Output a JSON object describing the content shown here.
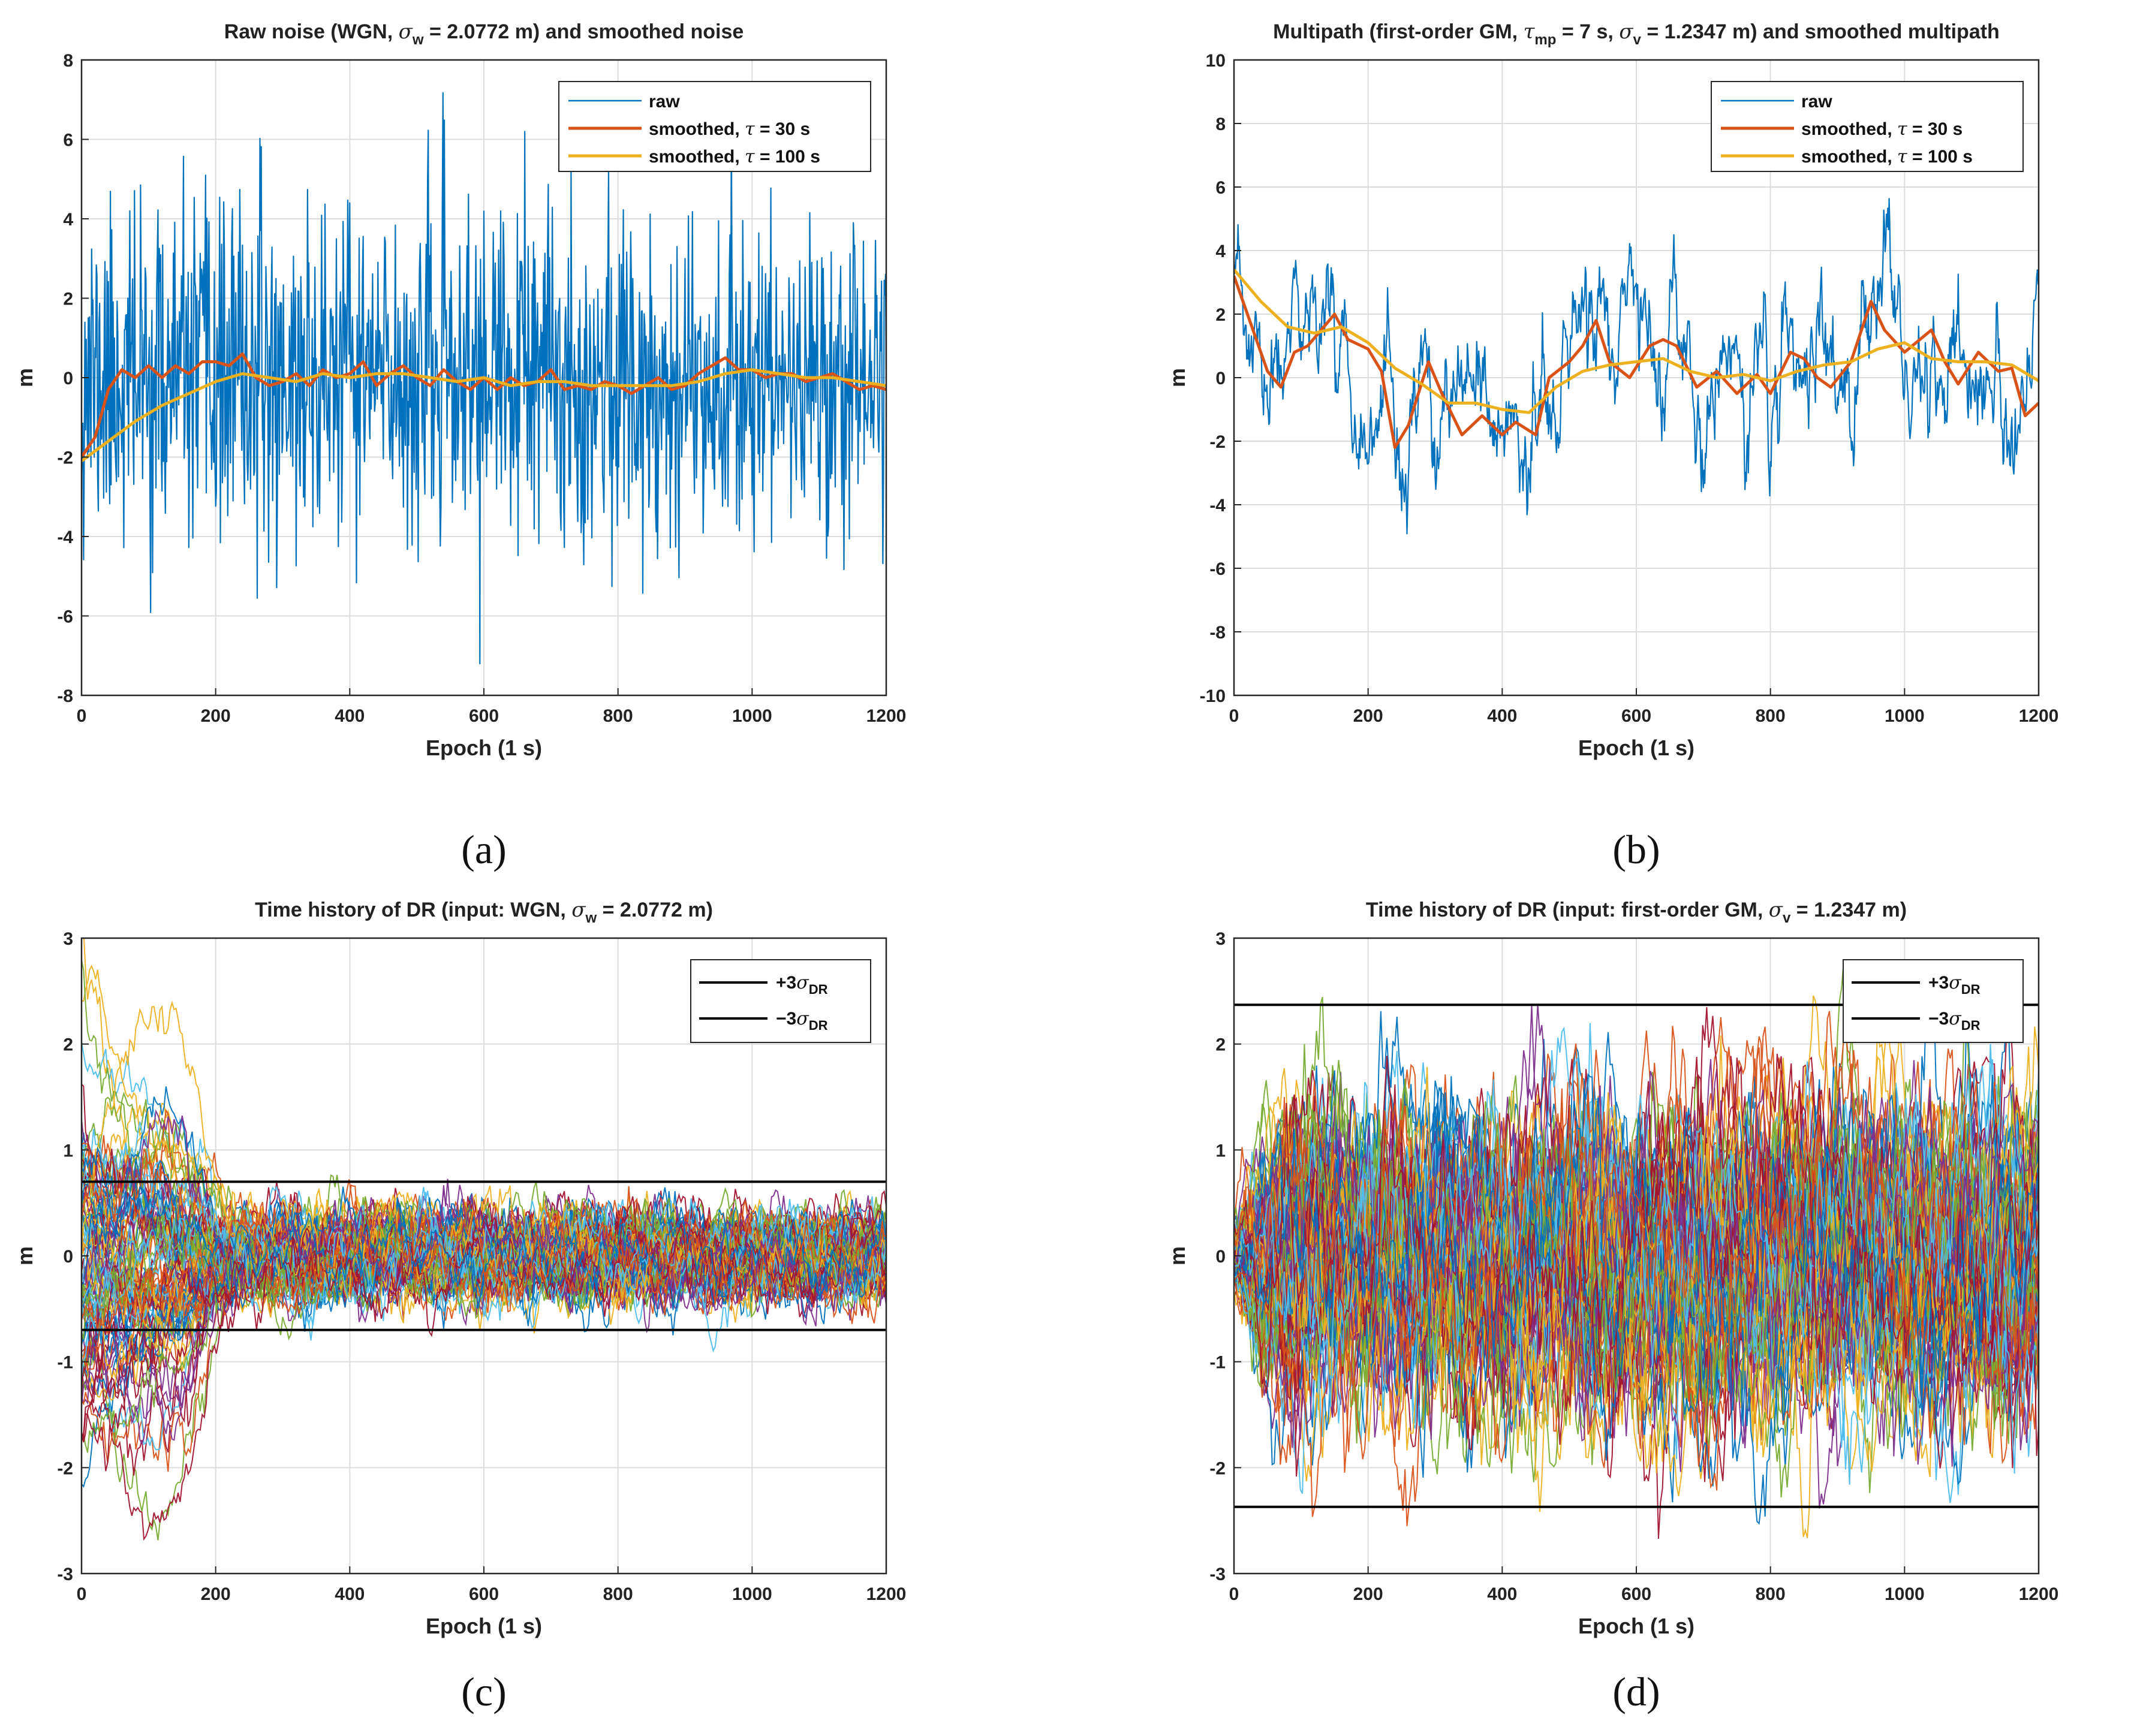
{
  "chart_data": [
    {
      "id": "a",
      "type": "line",
      "panel_label": "(a)",
      "title": "Raw noise (WGN, σ_w = 2.0772 m) and smoothed noise",
      "title_parts": {
        "pre": "Raw noise (WGN, ",
        "sym": "σ",
        "sub": "w",
        "post": " = 2.0772 m) and smoothed noise"
      },
      "xlabel": "Epoch (1 s)",
      "ylabel": "m",
      "xlim": [
        0,
        1200
      ],
      "ylim": [
        -8,
        8
      ],
      "xticks": [
        0,
        200,
        400,
        600,
        800,
        1000,
        1200
      ],
      "yticks": [
        -8,
        -6,
        -4,
        -2,
        0,
        2,
        4,
        6,
        8
      ],
      "grid": true,
      "legend_position": "top-right",
      "series": [
        {
          "name": "raw",
          "legend_label": "raw",
          "color": "#0072BD",
          "kind": "white-noise",
          "sigma": 2.0772,
          "seed": 11
        },
        {
          "name": "smoothed, τ = 30 s",
          "legend_label": "smoothed, τ = 30 s",
          "color": "#D95319",
          "kind": "smoothed",
          "points": [
            [
              0,
              -2.0
            ],
            [
              20,
              -1.5
            ],
            [
              40,
              -0.3
            ],
            [
              60,
              0.2
            ],
            [
              80,
              0.0
            ],
            [
              100,
              0.3
            ],
            [
              120,
              0.0
            ],
            [
              140,
              0.3
            ],
            [
              160,
              0.1
            ],
            [
              180,
              0.4
            ],
            [
              200,
              0.4
            ],
            [
              220,
              0.3
            ],
            [
              240,
              0.6
            ],
            [
              260,
              0.0
            ],
            [
              280,
              -0.2
            ],
            [
              300,
              -0.1
            ],
            [
              320,
              0.1
            ],
            [
              340,
              -0.2
            ],
            [
              360,
              0.2
            ],
            [
              380,
              0.0
            ],
            [
              400,
              0.1
            ],
            [
              420,
              0.4
            ],
            [
              440,
              -0.2
            ],
            [
              460,
              0.1
            ],
            [
              480,
              0.3
            ],
            [
              500,
              0.0
            ],
            [
              520,
              -0.2
            ],
            [
              540,
              0.2
            ],
            [
              560,
              -0.1
            ],
            [
              580,
              -0.3
            ],
            [
              600,
              0.0
            ],
            [
              620,
              -0.3
            ],
            [
              640,
              0.0
            ],
            [
              660,
              -0.2
            ],
            [
              680,
              -0.1
            ],
            [
              700,
              0.2
            ],
            [
              720,
              -0.3
            ],
            [
              740,
              -0.2
            ],
            [
              760,
              -0.3
            ],
            [
              780,
              -0.1
            ],
            [
              800,
              -0.2
            ],
            [
              820,
              -0.4
            ],
            [
              840,
              -0.2
            ],
            [
              860,
              0.0
            ],
            [
              880,
              -0.3
            ],
            [
              900,
              -0.2
            ],
            [
              920,
              0.1
            ],
            [
              940,
              0.3
            ],
            [
              960,
              0.5
            ],
            [
              980,
              0.2
            ],
            [
              1000,
              0.2
            ],
            [
              1020,
              0.0
            ],
            [
              1040,
              0.1
            ],
            [
              1060,
              0.1
            ],
            [
              1080,
              -0.1
            ],
            [
              1100,
              0.0
            ],
            [
              1120,
              0.1
            ],
            [
              1140,
              -0.1
            ],
            [
              1160,
              -0.3
            ],
            [
              1180,
              -0.2
            ],
            [
              1200,
              -0.3
            ]
          ]
        },
        {
          "name": "smoothed, τ = 100 s",
          "legend_label": "smoothed, τ = 100 s",
          "color": "#EDB120",
          "kind": "smoothed",
          "points": [
            [
              0,
              -2.1
            ],
            [
              40,
              -1.6
            ],
            [
              80,
              -1.1
            ],
            [
              120,
              -0.7
            ],
            [
              160,
              -0.4
            ],
            [
              200,
              -0.1
            ],
            [
              240,
              0.1
            ],
            [
              280,
              0.0
            ],
            [
              320,
              -0.1
            ],
            [
              360,
              0.1
            ],
            [
              400,
              0.0
            ],
            [
              440,
              0.1
            ],
            [
              480,
              0.1
            ],
            [
              520,
              0.0
            ],
            [
              560,
              -0.1
            ],
            [
              600,
              0.0
            ],
            [
              640,
              -0.2
            ],
            [
              680,
              -0.1
            ],
            [
              720,
              -0.1
            ],
            [
              760,
              -0.2
            ],
            [
              800,
              -0.2
            ],
            [
              840,
              -0.2
            ],
            [
              880,
              -0.2
            ],
            [
              920,
              -0.1
            ],
            [
              960,
              0.1
            ],
            [
              1000,
              0.2
            ],
            [
              1040,
              0.1
            ],
            [
              1080,
              0.0
            ],
            [
              1120,
              0.0
            ],
            [
              1160,
              -0.1
            ],
            [
              1200,
              -0.2
            ]
          ]
        }
      ]
    },
    {
      "id": "b",
      "type": "line",
      "panel_label": "(b)",
      "title": "Multipath (first-order GM, τ_mp = 7 s, σ_v = 1.2347 m) and smoothed multipath",
      "title_parts": {
        "pre": "Multipath (first-order GM, ",
        "sym": "τ",
        "sub": "mp",
        "mid": " = 7 s, ",
        "sym2": "σ",
        "sub2": "v",
        "post": " = 1.2347 m) and smoothed multipath"
      },
      "xlabel": "Epoch (1 s)",
      "ylabel": "m",
      "xlim": [
        0,
        1200
      ],
      "ylim": [
        -10,
        10
      ],
      "xticks": [
        0,
        200,
        400,
        600,
        800,
        1000,
        1200
      ],
      "yticks": [
        -10,
        -8,
        -6,
        -4,
        -2,
        0,
        2,
        4,
        6,
        8,
        10
      ],
      "grid": true,
      "legend_position": "top-right",
      "series": [
        {
          "name": "raw",
          "legend_label": "raw",
          "color": "#0072BD",
          "kind": "gauss-markov",
          "tau": 7,
          "sigma": 1.2347,
          "seed": 23,
          "trend": [
            [
              0,
              2.5
            ],
            [
              50,
              -1.0
            ],
            [
              100,
              1.5
            ],
            [
              130,
              3.0
            ],
            [
              180,
              0.5
            ],
            [
              240,
              -3.0
            ],
            [
              300,
              -1.0
            ],
            [
              350,
              -2.0
            ],
            [
              420,
              -1.5
            ],
            [
              480,
              -1.0
            ],
            [
              520,
              1.5
            ],
            [
              560,
              2.0
            ],
            [
              640,
              0.5
            ],
            [
              700,
              -1.5
            ],
            [
              760,
              0.0
            ],
            [
              820,
              -0.5
            ],
            [
              860,
              1.5
            ],
            [
              900,
              -1.0
            ],
            [
              960,
              2.5
            ],
            [
              1000,
              0.5
            ],
            [
              1050,
              1.0
            ],
            [
              1100,
              0.0
            ],
            [
              1160,
              -1.0
            ],
            [
              1200,
              0.5
            ]
          ]
        },
        {
          "name": "smoothed, τ = 30 s",
          "legend_label": "smoothed, τ = 30 s",
          "color": "#D95319",
          "kind": "smoothed",
          "points": [
            [
              0,
              3.2
            ],
            [
              20,
              2.0
            ],
            [
              50,
              0.2
            ],
            [
              70,
              -0.3
            ],
            [
              90,
              0.8
            ],
            [
              110,
              1.0
            ],
            [
              130,
              1.5
            ],
            [
              150,
              2.0
            ],
            [
              170,
              1.2
            ],
            [
              200,
              0.9
            ],
            [
              220,
              0.2
            ],
            [
              240,
              -2.2
            ],
            [
              260,
              -1.5
            ],
            [
              290,
              0.5
            ],
            [
              310,
              -0.5
            ],
            [
              340,
              -1.8
            ],
            [
              370,
              -1.2
            ],
            [
              400,
              -1.8
            ],
            [
              420,
              -1.4
            ],
            [
              450,
              -1.8
            ],
            [
              470,
              0.0
            ],
            [
              500,
              0.5
            ],
            [
              520,
              1.0
            ],
            [
              540,
              1.8
            ],
            [
              560,
              0.5
            ],
            [
              590,
              0.0
            ],
            [
              620,
              1.0
            ],
            [
              640,
              1.2
            ],
            [
              660,
              1.0
            ],
            [
              690,
              -0.3
            ],
            [
              720,
              0.2
            ],
            [
              750,
              -0.5
            ],
            [
              780,
              0.1
            ],
            [
              800,
              -0.5
            ],
            [
              830,
              0.8
            ],
            [
              850,
              0.6
            ],
            [
              870,
              0.0
            ],
            [
              890,
              -0.3
            ],
            [
              920,
              0.5
            ],
            [
              950,
              2.4
            ],
            [
              970,
              1.5
            ],
            [
              1000,
              0.8
            ],
            [
              1040,
              1.5
            ],
            [
              1060,
              0.5
            ],
            [
              1080,
              -0.2
            ],
            [
              1110,
              0.8
            ],
            [
              1140,
              0.2
            ],
            [
              1160,
              0.3
            ],
            [
              1180,
              -1.2
            ],
            [
              1200,
              -0.8
            ]
          ]
        },
        {
          "name": "smoothed, τ = 100 s",
          "legend_label": "smoothed, τ = 100 s",
          "color": "#EDB120",
          "kind": "smoothed",
          "points": [
            [
              0,
              3.4
            ],
            [
              40,
              2.4
            ],
            [
              80,
              1.6
            ],
            [
              120,
              1.4
            ],
            [
              160,
              1.6
            ],
            [
              200,
              1.1
            ],
            [
              240,
              0.3
            ],
            [
              280,
              -0.2
            ],
            [
              320,
              -0.8
            ],
            [
              360,
              -0.8
            ],
            [
              400,
              -1.0
            ],
            [
              440,
              -1.1
            ],
            [
              480,
              -0.3
            ],
            [
              520,
              0.2
            ],
            [
              560,
              0.4
            ],
            [
              600,
              0.5
            ],
            [
              640,
              0.6
            ],
            [
              680,
              0.2
            ],
            [
              720,
              0.0
            ],
            [
              760,
              0.1
            ],
            [
              800,
              -0.1
            ],
            [
              840,
              0.2
            ],
            [
              880,
              0.4
            ],
            [
              920,
              0.5
            ],
            [
              960,
              0.9
            ],
            [
              1000,
              1.1
            ],
            [
              1040,
              0.6
            ],
            [
              1080,
              0.5
            ],
            [
              1120,
              0.5
            ],
            [
              1160,
              0.4
            ],
            [
              1200,
              -0.1
            ]
          ]
        }
      ]
    },
    {
      "id": "c",
      "type": "line",
      "panel_label": "(c)",
      "title": "Time history of DR (input: WGN, σ_w = 2.0772 m)",
      "title_parts": {
        "pre": "Time history of DR (input: WGN, ",
        "sym": "σ",
        "sub": "w",
        "post": " = 2.0772 m)"
      },
      "xlabel": "Epoch (1 s)",
      "ylabel": "m",
      "xlim": [
        0,
        1200
      ],
      "ylim": [
        -3,
        3
      ],
      "xticks": [
        0,
        200,
        400,
        600,
        800,
        1000,
        1200
      ],
      "yticks": [
        -3,
        -2,
        -1,
        0,
        1,
        2,
        3
      ],
      "grid": true,
      "legend_position": "top-right",
      "ensemble": {
        "runs": 100,
        "kind": "dr-transient",
        "initial_spread": 1.0,
        "steady_spread": 0.2,
        "decay": 100,
        "seed": 37
      },
      "bounds": [
        {
          "name": "+3σDR",
          "legend_sign": "+3",
          "value": 0.7,
          "color": "#000000"
        },
        {
          "name": "−3σDR",
          "legend_sign": "−3",
          "value": -0.7,
          "color": "#000000"
        }
      ],
      "legend_sigma": "σ",
      "legend_sub": "DR"
    },
    {
      "id": "d",
      "type": "line",
      "panel_label": "(d)",
      "title": "Time history of DR (input: first-order GM, σ_v = 1.2347 m)",
      "title_parts": {
        "pre": "Time history of DR (input: first-order GM, ",
        "sym": "σ",
        "sub": "v",
        "post": " = 1.2347 m)"
      },
      "xlabel": "Epoch (1 s)",
      "ylabel": "m",
      "xlim": [
        0,
        1200
      ],
      "ylim": [
        -3,
        3
      ],
      "xticks": [
        0,
        200,
        400,
        600,
        800,
        1000,
        1200
      ],
      "yticks": [
        -3,
        -2,
        -1,
        0,
        1,
        2,
        3
      ],
      "grid": true,
      "legend_position": "top-right",
      "ensemble": {
        "runs": 100,
        "kind": "dr-stationary",
        "steady_spread": 0.7,
        "tau": 30,
        "seed": 53
      },
      "bounds": [
        {
          "name": "+3σDR",
          "legend_sign": "+3",
          "value": 2.37,
          "color": "#000000"
        },
        {
          "name": "−3σDR",
          "legend_sign": "−3",
          "value": -2.37,
          "color": "#000000"
        }
      ],
      "legend_sigma": "σ",
      "legend_sub": "DR"
    }
  ],
  "palette": [
    "#0072BD",
    "#D95319",
    "#EDB120",
    "#7E2F8E",
    "#77AC30",
    "#4DBEEE",
    "#A2142F"
  ]
}
